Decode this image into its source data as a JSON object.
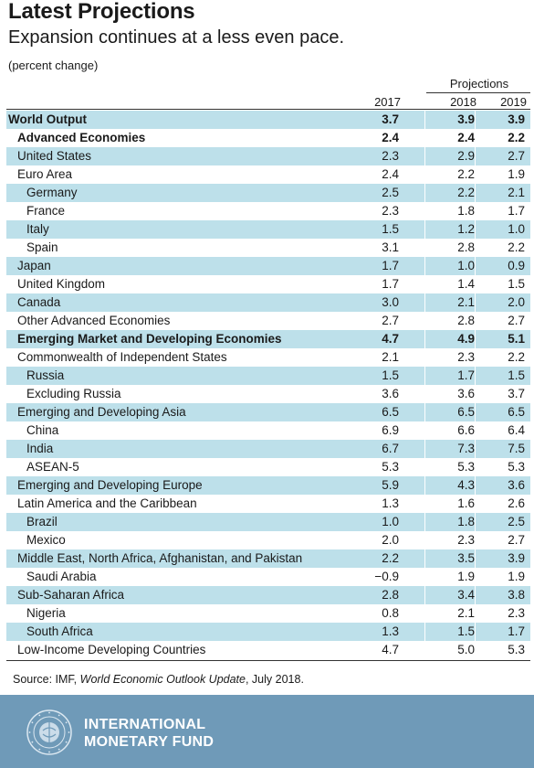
{
  "header": {
    "title": "Latest Projections",
    "subtitle": "Expansion continues at a less even pace.",
    "unit": "(percent change)",
    "projections_label": "Projections",
    "years": [
      "2017",
      "2018",
      "2019"
    ]
  },
  "rows": [
    {
      "label": "World Output",
      "v": [
        "3.7",
        "3.9",
        "3.9"
      ],
      "indent": 0,
      "bold": true,
      "shaded": true
    },
    {
      "label": "Advanced Economies",
      "v": [
        "2.4",
        "2.4",
        "2.2"
      ],
      "indent": 1,
      "bold": true,
      "shaded": false
    },
    {
      "label": "United States",
      "v": [
        "2.3",
        "2.9",
        "2.7"
      ],
      "indent": 1,
      "bold": false,
      "shaded": true
    },
    {
      "label": "Euro Area",
      "v": [
        "2.4",
        "2.2",
        "1.9"
      ],
      "indent": 1,
      "bold": false,
      "shaded": false
    },
    {
      "label": "Germany",
      "v": [
        "2.5",
        "2.2",
        "2.1"
      ],
      "indent": 2,
      "bold": false,
      "shaded": true
    },
    {
      "label": "France",
      "v": [
        "2.3",
        "1.8",
        "1.7"
      ],
      "indent": 2,
      "bold": false,
      "shaded": false
    },
    {
      "label": "Italy",
      "v": [
        "1.5",
        "1.2",
        "1.0"
      ],
      "indent": 2,
      "bold": false,
      "shaded": true
    },
    {
      "label": "Spain",
      "v": [
        "3.1",
        "2.8",
        "2.2"
      ],
      "indent": 2,
      "bold": false,
      "shaded": false
    },
    {
      "label": "Japan",
      "v": [
        "1.7",
        "1.0",
        "0.9"
      ],
      "indent": 1,
      "bold": false,
      "shaded": true
    },
    {
      "label": "United Kingdom",
      "v": [
        "1.7",
        "1.4",
        "1.5"
      ],
      "indent": 1,
      "bold": false,
      "shaded": false
    },
    {
      "label": "Canada",
      "v": [
        "3.0",
        "2.1",
        "2.0"
      ],
      "indent": 1,
      "bold": false,
      "shaded": true
    },
    {
      "label": "Other Advanced Economies",
      "v": [
        "2.7",
        "2.8",
        "2.7"
      ],
      "indent": 1,
      "bold": false,
      "shaded": false
    },
    {
      "label": "Emerging Market and Developing Economies",
      "v": [
        "4.7",
        "4.9",
        "5.1"
      ],
      "indent": 1,
      "bold": true,
      "shaded": true
    },
    {
      "label": "Commonwealth of Independent States",
      "v": [
        "2.1",
        "2.3",
        "2.2"
      ],
      "indent": 1,
      "bold": false,
      "shaded": false
    },
    {
      "label": "Russia",
      "v": [
        "1.5",
        "1.7",
        "1.5"
      ],
      "indent": 2,
      "bold": false,
      "shaded": true
    },
    {
      "label": "Excluding Russia",
      "v": [
        "3.6",
        "3.6",
        "3.7"
      ],
      "indent": 2,
      "bold": false,
      "shaded": false
    },
    {
      "label": "Emerging and Developing Asia",
      "v": [
        "6.5",
        "6.5",
        "6.5"
      ],
      "indent": 1,
      "bold": false,
      "shaded": true
    },
    {
      "label": "China",
      "v": [
        "6.9",
        "6.6",
        "6.4"
      ],
      "indent": 2,
      "bold": false,
      "shaded": false
    },
    {
      "label": "India",
      "v": [
        "6.7",
        "7.3",
        "7.5"
      ],
      "indent": 2,
      "bold": false,
      "shaded": true
    },
    {
      "label": "ASEAN-5",
      "v": [
        "5.3",
        "5.3",
        "5.3"
      ],
      "indent": 2,
      "bold": false,
      "shaded": false
    },
    {
      "label": "Emerging and Developing Europe",
      "v": [
        "5.9",
        "4.3",
        "3.6"
      ],
      "indent": 1,
      "bold": false,
      "shaded": true
    },
    {
      "label": "Latin America and the Caribbean",
      "v": [
        "1.3",
        "1.6",
        "2.6"
      ],
      "indent": 1,
      "bold": false,
      "shaded": false
    },
    {
      "label": "Brazil",
      "v": [
        "1.0",
        "1.8",
        "2.5"
      ],
      "indent": 2,
      "bold": false,
      "shaded": true
    },
    {
      "label": "Mexico",
      "v": [
        "2.0",
        "2.3",
        "2.7"
      ],
      "indent": 2,
      "bold": false,
      "shaded": false
    },
    {
      "label": "Middle East, North Africa, Afghanistan, and Pakistan",
      "v": [
        "2.2",
        "3.5",
        "3.9"
      ],
      "indent": 1,
      "bold": false,
      "shaded": true
    },
    {
      "label": "Saudi Arabia",
      "v": [
        "−0.9",
        "1.9",
        "1.9"
      ],
      "indent": 2,
      "bold": false,
      "shaded": false
    },
    {
      "label": "Sub-Saharan Africa",
      "v": [
        "2.8",
        "3.4",
        "3.8"
      ],
      "indent": 1,
      "bold": false,
      "shaded": true
    },
    {
      "label": "Nigeria",
      "v": [
        "0.8",
        "2.1",
        "2.3"
      ],
      "indent": 2,
      "bold": false,
      "shaded": false
    },
    {
      "label": "South Africa",
      "v": [
        "1.3",
        "1.5",
        "1.7"
      ],
      "indent": 2,
      "bold": false,
      "shaded": true
    },
    {
      "label": "Low-Income Developing Countries",
      "v": [
        "4.7",
        "5.0",
        "5.3"
      ],
      "indent": 1,
      "bold": false,
      "shaded": false
    }
  ],
  "source": {
    "prefix": "Source: IMF, ",
    "publication": "World Economic Outlook Update",
    "suffix": ", July 2018."
  },
  "footer": {
    "org_line1": "INTERNATIONAL",
    "org_line2": "MONETARY FUND",
    "logo_icon": "imf-seal-icon",
    "background": "#6f9ab8"
  },
  "colors": {
    "row_shading": "#bde0ea"
  }
}
